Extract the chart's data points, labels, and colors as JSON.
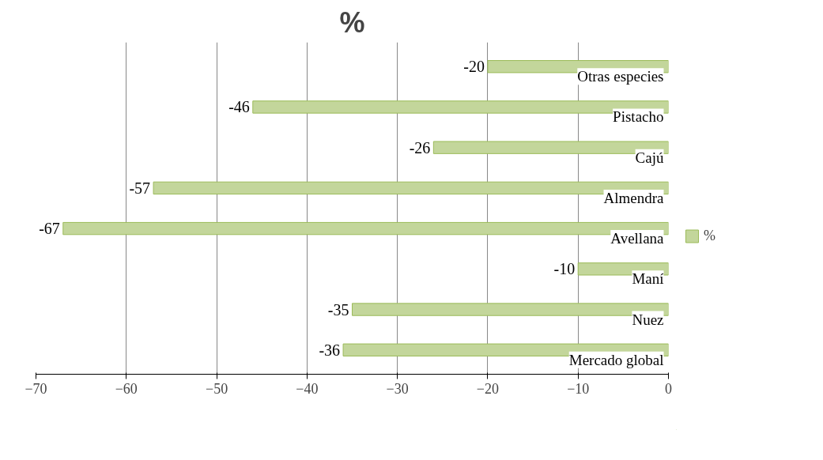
{
  "chart_data": {
    "type": "bar",
    "orientation": "horizontal",
    "title": "%",
    "categories": [
      "Otras especies",
      "Pistacho",
      "Cajú",
      "Almendra",
      "Avellana",
      "Maní",
      "Nuez",
      "Mercado global"
    ],
    "series": [
      {
        "name": "%",
        "color": "#c3d69b",
        "values": [
          -20,
          -46,
          -26,
          -57,
          -67,
          -10,
          -35,
          -36
        ]
      }
    ],
    "xlim": [
      -70,
      0
    ],
    "xticks": [
      -70,
      -60,
      -50,
      -40,
      -30,
      -20,
      -10,
      0
    ],
    "grid": "x",
    "legend": "right",
    "data_labels": true
  }
}
